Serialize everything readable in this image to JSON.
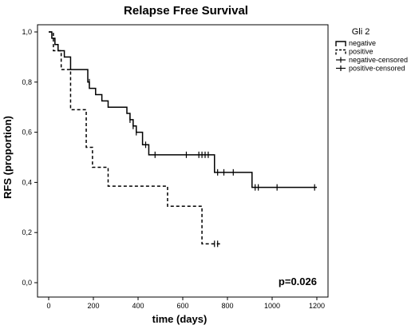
{
  "chart_data": {
    "type": "line",
    "title": "Relapse Free Survival",
    "xlabel": "time (days)",
    "ylabel": "RFS (proportion)",
    "xlim": [
      0,
      1200
    ],
    "ylim": [
      0,
      1
    ],
    "x_ticks": [
      0,
      200,
      400,
      600,
      800,
      1000,
      1200
    ],
    "y_ticks": [
      0.0,
      0.2,
      0.4,
      0.6,
      0.8,
      1.0
    ],
    "y_tick_labels": [
      "0,0",
      "0,2",
      "0,4",
      "0,6",
      "0,8",
      "1,0"
    ],
    "grid": false,
    "step": true,
    "legend": {
      "title": "Gli 2",
      "placement": "outside-right",
      "entries": [
        "negative",
        "positive",
        "negative-censored",
        "positive-censored"
      ]
    },
    "series": [
      {
        "name": "negative",
        "line_style": "solid",
        "x": [
          0,
          14,
          28,
          42,
          70,
          98,
          175,
          182,
          210,
          238,
          266,
          350,
          364,
          378,
          392,
          420,
          448,
          728,
          742,
          910,
          1200
        ],
        "y": [
          1.0,
          0.975,
          0.95,
          0.925,
          0.9,
          0.85,
          0.8,
          0.775,
          0.75,
          0.725,
          0.7,
          0.675,
          0.65,
          0.625,
          0.6,
          0.55,
          0.51,
          0.51,
          0.44,
          0.38,
          0.38
        ]
      },
      {
        "name": "positive",
        "line_style": "dashed",
        "x": [
          0,
          21,
          56,
          98,
          168,
          196,
          266,
          532,
          686,
          770
        ],
        "y": [
          1.0,
          0.925,
          0.85,
          0.69,
          0.54,
          0.46,
          0.385,
          0.305,
          0.155,
          0.155
        ]
      },
      {
        "name": "negative-censored",
        "marker": "tick",
        "x": [
          182,
          364,
          378,
          392,
          434,
          476,
          616,
          672,
          686,
          700,
          714,
          756,
          784,
          826,
          924,
          938,
          1022,
          1190
        ],
        "y": [
          0.8,
          0.65,
          0.625,
          0.6,
          0.55,
          0.51,
          0.51,
          0.51,
          0.51,
          0.51,
          0.51,
          0.44,
          0.44,
          0.44,
          0.38,
          0.38,
          0.38,
          0.38
        ]
      },
      {
        "name": "positive-censored",
        "marker": "tick",
        "x": [
          742,
          756
        ],
        "y": [
          0.155,
          0.155
        ]
      }
    ],
    "annotations": [
      {
        "text": "p=0.026"
      }
    ]
  }
}
